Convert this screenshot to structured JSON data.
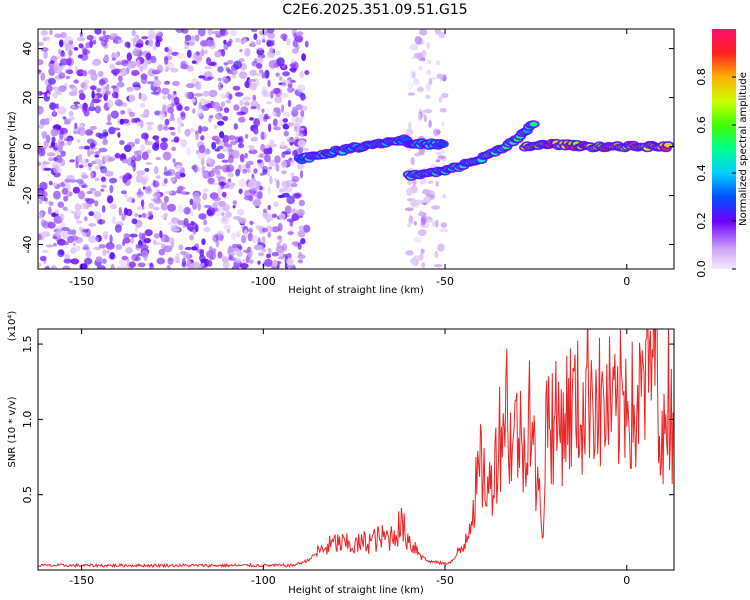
{
  "title": "C2E6.2025.351.09.51.G15",
  "chart_data": [
    {
      "type": "heatmap",
      "title": "C2E6.2025.351.09.51.G15",
      "xlabel": "Height of straight line (km)",
      "ylabel": "Frequency (Hz)",
      "xlim": [
        -162,
        13
      ],
      "ylim": [
        -50,
        48
      ],
      "x_ticks": [
        -150,
        -100,
        -50,
        0
      ],
      "y_ticks": [
        -40,
        -20,
        0,
        20,
        40
      ],
      "colorbar": {
        "label": "Normalized spectral amplitude",
        "range": [
          0,
          1
        ],
        "ticks": [
          0.0,
          0.2,
          0.4,
          0.6,
          0.8
        ],
        "tick_labels": [
          "0.0",
          "0.2",
          "0.4",
          "0.6",
          "0.8"
        ]
      },
      "features": [
        {
          "name": "broadband noise",
          "x_range": [
            -162,
            -88
          ],
          "y_range": [
            -50,
            48
          ],
          "amplitude": 0.2
        },
        {
          "name": "sparse noise column",
          "x_range": [
            -60,
            -50
          ],
          "y_range": [
            -50,
            48
          ],
          "amplitude": 0.1
        },
        {
          "name": "track 1",
          "x": [
            -90,
            -80,
            -70,
            -60
          ],
          "y": [
            -5,
            -2,
            1,
            3
          ],
          "amplitude": 0.45
        },
        {
          "name": "track 2",
          "x": [
            -60,
            -50
          ],
          "y": [
            1,
            1
          ],
          "amplitude": 0.4
        },
        {
          "name": "track 3",
          "x": [
            -60,
            -50,
            -40,
            -30,
            -25
          ],
          "y": [
            -12,
            -10,
            -5,
            3,
            10
          ],
          "amplitude": 0.5
        },
        {
          "name": "track 4",
          "x": [
            -28,
            -20,
            -10,
            0,
            12
          ],
          "y": [
            0,
            1,
            0,
            0,
            0
          ],
          "amplitude": 0.85
        }
      ]
    },
    {
      "type": "line",
      "title": "",
      "xlabel": "Height of straight line (km)",
      "ylabel": "SNR (10 * v/v)",
      "y_multiplier_label": "(x10⁴)",
      "xlim": [
        -162,
        13
      ],
      "ylim": [
        0,
        1.6
      ],
      "x_ticks": [
        -150,
        -100,
        -50,
        0
      ],
      "y_ticks": [
        0.5,
        1.0,
        1.5
      ],
      "y_tick_labels": [
        "0.5",
        "1.0",
        "1.5"
      ],
      "series": [
        {
          "name": "SNR",
          "color": "#ee2222",
          "x": [
            -162,
            -150,
            -140,
            -120,
            -100,
            -92,
            -88,
            -85,
            -80,
            -75,
            -70,
            -65,
            -62,
            -60,
            -57,
            -55,
            -52,
            -50,
            -48,
            -45,
            -43,
            -40,
            -38,
            -35,
            -33,
            -32,
            -30,
            -28,
            -27,
            -25,
            -23,
            -22,
            -20,
            -18,
            -15,
            -12,
            -10,
            -7,
            -5,
            -3,
            0,
            2,
            4,
            6,
            7,
            8,
            9,
            10,
            11,
            12,
            13
          ],
          "y": [
            0.03,
            0.03,
            0.03,
            0.03,
            0.03,
            0.03,
            0.06,
            0.12,
            0.18,
            0.16,
            0.2,
            0.22,
            0.3,
            0.2,
            0.12,
            0.06,
            0.05,
            0.04,
            0.06,
            0.15,
            0.35,
            0.7,
            0.5,
            0.9,
            1.15,
            0.85,
            0.95,
            0.75,
            1.25,
            0.6,
            0.3,
            1.1,
            0.95,
            1.0,
            1.1,
            1.05,
            1.3,
            1.05,
            1.1,
            1.0,
            1.25,
            1.0,
            1.15,
            1.3,
            1.45,
            1.56,
            1.2,
            0.65,
            1.35,
            1.05,
            1.0
          ]
        }
      ]
    }
  ]
}
